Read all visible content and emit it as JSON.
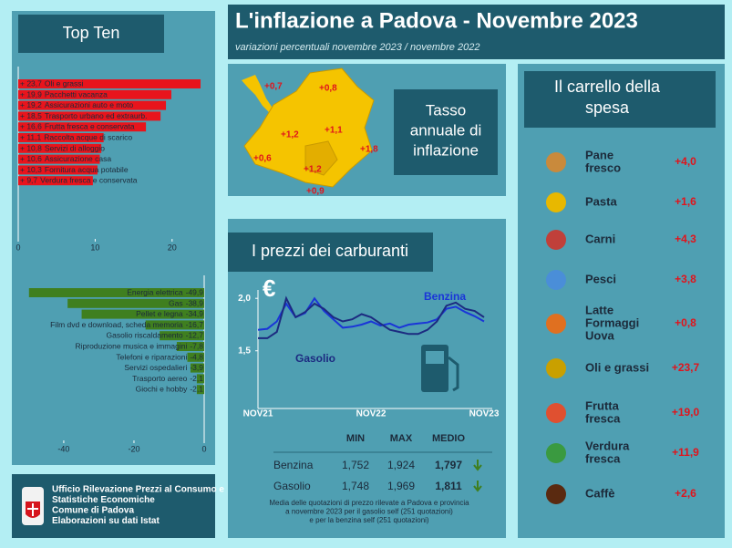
{
  "header": {
    "title": "L'inflazione a Padova - Novembre 2023",
    "subtitle": "variazioni percentuali novembre 2023 / novembre 2022"
  },
  "map": {
    "title": [
      "Tasso",
      "annuale di",
      "inflazione"
    ],
    "labels": [
      "+0,7",
      "+0,8",
      "+1,2",
      "+1,1",
      "+1,8",
      "+0,6",
      "+1,2",
      "+0,9"
    ]
  },
  "chart_data": [
    {
      "type": "hbar",
      "title": "Top Ten",
      "categories": [
        "Oli e grassi",
        "Pacchetti vacanza",
        "Assicurazioni auto e moto",
        "Trasporto urbano ed extraurb.",
        "Frutta fresca e conservata",
        "Raccolta acque di scarico",
        "Servizi di alloggio",
        "Assicurazione casa",
        "Fornitura acqua potabile",
        "Verdura fresca e conservata"
      ],
      "values": [
        23.7,
        19.9,
        19.2,
        18.5,
        16.6,
        11.1,
        10.8,
        10.6,
        10.3,
        9.7
      ],
      "value_labels": [
        "+ 23,7",
        "+ 19,9",
        "+ 19,2",
        "+ 18,5",
        "+ 16,6",
        "+ 11,1",
        "+ 10,8",
        "+ 10,6",
        "+ 10,3",
        "+ 9,7"
      ],
      "color": "#e8141c",
      "xlim": [
        0,
        25
      ],
      "xticks": [
        0,
        10,
        20
      ]
    },
    {
      "type": "hbar",
      "categories": [
        "Energia elettrica",
        "Gas",
        "Pellet e legna",
        "Film dvd e download, scheda memoria",
        "Gasolio riscaldamento",
        "Riproduzione musica e immagini",
        "Telefoni e riparazioni",
        "Servizi ospedalieri",
        "Trasporto aereo",
        "Giochi e hobby"
      ],
      "values": [
        -49.9,
        -38.9,
        -34.9,
        -16.7,
        -12.7,
        -7.8,
        -4.8,
        -3.9,
        -2.1,
        -2.1
      ],
      "value_labels": [
        "-49,9",
        "-38,9",
        "-34,9",
        "-16,7",
        "-12,7",
        "-7,8",
        "-4,8",
        "-3,9",
        "-2,1",
        "-2,1"
      ],
      "color": "#3f7f1f",
      "xlim": [
        -54,
        0
      ],
      "xticks": [
        -40,
        -20,
        0
      ]
    },
    {
      "type": "line",
      "title": "I prezzi dei carburanti",
      "y_label": "€",
      "categories": [
        "NOV21",
        null,
        null,
        null,
        null,
        null,
        null,
        null,
        null,
        null,
        null,
        null,
        "NOV22",
        null,
        null,
        null,
        null,
        null,
        null,
        null,
        null,
        null,
        null,
        null,
        "NOV23"
      ],
      "series": [
        {
          "name": "Benzina",
          "color": "#1a35d8",
          "values": [
            1.7,
            1.71,
            1.78,
            1.95,
            1.82,
            1.86,
            2.0,
            1.88,
            1.8,
            1.72,
            1.73,
            1.75,
            1.78,
            1.74,
            1.76,
            1.72,
            1.75,
            1.76,
            1.77,
            1.8,
            1.9,
            1.92,
            1.87,
            1.83,
            1.78
          ]
        },
        {
          "name": "Gasolio",
          "color": "#1c2a80",
          "values": [
            1.62,
            1.62,
            1.68,
            2.0,
            1.82,
            1.87,
            1.95,
            1.9,
            1.82,
            1.78,
            1.8,
            1.85,
            1.82,
            1.76,
            1.7,
            1.68,
            1.66,
            1.66,
            1.7,
            1.78,
            1.93,
            1.96,
            1.9,
            1.88,
            1.82
          ]
        }
      ],
      "ylim": [
        0.95,
        2.08
      ],
      "yticks": [
        {
          "value": 2,
          "label": "2,0"
        },
        {
          "value": 1.5,
          "label": "1,5"
        }
      ]
    }
  ],
  "fuel_table": {
    "header": [
      "MIN",
      "MAX",
      "MEDIO"
    ],
    "rows": [
      [
        "Benzina",
        "1,752",
        "1,924",
        "1,797"
      ],
      [
        "Gasolio",
        "1,748",
        "1,969",
        "1,811"
      ]
    ],
    "note": [
      "Media delle quotazioni di prezzo rilevate a Padova e provincia",
      "a novembre 2023 per il gasolio self (251 quotazioni)",
      "e per la benzina self (251 quotazioni)"
    ]
  },
  "carrello": {
    "title": [
      "Il carrello della",
      "spesa"
    ],
    "items": [
      {
        "name": [
          "Pane",
          "fresco"
        ],
        "value": "+4,0"
      },
      {
        "name": [
          "Pasta"
        ],
        "value": "+1,6"
      },
      {
        "name": [
          "Carni"
        ],
        "value": "+4,3"
      },
      {
        "name": [
          "Pesci"
        ],
        "value": "+3,8"
      },
      {
        "name": [
          "Latte",
          "Formaggi",
          "Uova"
        ],
        "value": "+0,8"
      },
      {
        "name": [
          "Oli e grassi"
        ],
        "value": "+23,7"
      },
      {
        "name": [
          "Frutta",
          "fresca"
        ],
        "value": "+19,0"
      },
      {
        "name": [
          "Verdura",
          "fresca"
        ],
        "value": "+11,9"
      },
      {
        "name": [
          "Caffè"
        ],
        "value": "+2,6"
      }
    ]
  },
  "footer": [
    "Ufficio Rilevazione Prezzi al Consumo e",
    "Statistiche Economiche",
    "Comune di Padova",
    "Elaborazioni su dati Istat"
  ]
}
